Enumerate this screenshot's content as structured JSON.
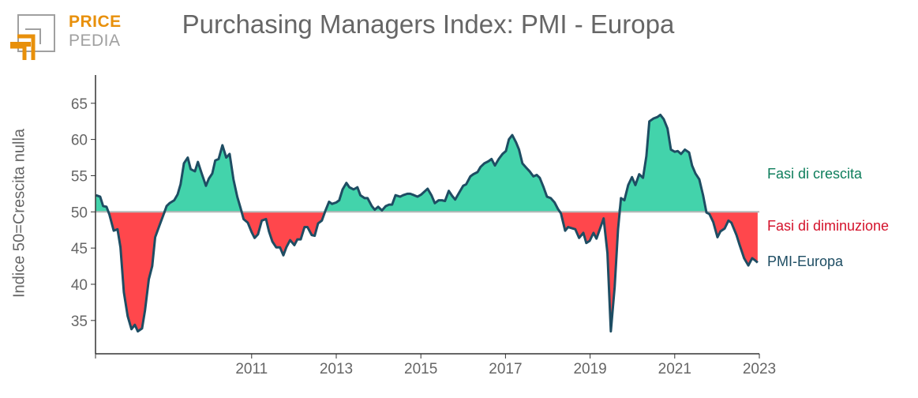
{
  "logo": {
    "line1": "PRICE",
    "line2": "PEDIA",
    "orange": "#e8900b",
    "grey": "#a0a0a0"
  },
  "chart_data": {
    "type": "area",
    "title": "Purchasing Managers Index: PMI - Europa",
    "xlabel": "",
    "ylabel": "Indice 50=Crescita nulla",
    "xlim": [
      2007.31,
      2023
    ],
    "ylim": [
      30.4,
      68.9
    ],
    "baseline": 50,
    "x_ticks": [
      2011,
      2013,
      2015,
      2017,
      2019,
      2021,
      2023
    ],
    "x_tick_labels": [
      "2011",
      "2013",
      "2015",
      "2017",
      "2019",
      "2021",
      "2023"
    ],
    "y_ticks": [
      35,
      40,
      45,
      50,
      55,
      60,
      65
    ],
    "y_tick_labels": [
      "35",
      "40",
      "45",
      "50",
      "55",
      "60",
      "65"
    ],
    "grid": false,
    "legend": [
      {
        "label": "Fasi di crescita",
        "color": "#0e7e5c",
        "fill": "#43d3ab"
      },
      {
        "label": "Fasi di diminuzione",
        "color": "#d4122b",
        "fill": "#ff474c"
      },
      {
        "label": "PMI-Europa",
        "color": "#1e4d63"
      }
    ],
    "legend_position": "right",
    "series": [
      {
        "name": "PMI-Europa",
        "color": "#1e4d63",
        "x": [
          2007.32,
          2007.42,
          2007.49,
          2007.57,
          2007.64,
          2007.74,
          2007.83,
          2007.9,
          2007.98,
          2008.07,
          2008.16,
          2008.24,
          2008.31,
          2008.41,
          2008.48,
          2008.57,
          2008.65,
          2008.72,
          2008.82,
          2008.91,
          2008.99,
          2009.06,
          2009.17,
          2009.25,
          2009.32,
          2009.4,
          2009.49,
          2009.56,
          2009.66,
          2009.73,
          2009.82,
          2009.92,
          2009.99,
          2010.07,
          2010.14,
          2010.22,
          2010.31,
          2010.4,
          2010.48,
          2010.57,
          2010.66,
          2010.74,
          2010.81,
          2010.91,
          2011.0,
          2011.07,
          2011.15,
          2011.24,
          2011.34,
          2011.41,
          2011.49,
          2011.58,
          2011.67,
          2011.75,
          2011.82,
          2011.91,
          2012.01,
          2012.08,
          2012.16,
          2012.25,
          2012.32,
          2012.42,
          2012.49,
          2012.57,
          2012.66,
          2012.74,
          2012.83,
          2012.9,
          2013.0,
          2013.07,
          2013.15,
          2013.24,
          2013.31,
          2013.41,
          2013.5,
          2013.57,
          2013.67,
          2013.74,
          2013.84,
          2013.91,
          2013.99,
          2014.08,
          2014.17,
          2014.25,
          2014.32,
          2014.4,
          2014.51,
          2014.58,
          2014.68,
          2014.75,
          2014.84,
          2014.92,
          2015.01,
          2015.16,
          2015.25,
          2015.33,
          2015.42,
          2015.5,
          2015.57,
          2015.66,
          2015.74,
          2015.81,
          2015.91,
          2016.0,
          2016.07,
          2016.17,
          2016.24,
          2016.34,
          2016.41,
          2016.5,
          2016.6,
          2016.67,
          2016.75,
          2016.84,
          2016.93,
          2017.01,
          2017.08,
          2017.16,
          2017.25,
          2017.32,
          2017.4,
          2017.49,
          2017.57,
          2017.66,
          2017.74,
          2017.81,
          2017.9,
          2017.98,
          2018.07,
          2018.16,
          2018.24,
          2018.31,
          2018.41,
          2018.48,
          2018.65,
          2018.74,
          2018.84,
          2018.91,
          2018.99,
          2019.08,
          2019.15,
          2019.32,
          2019.41,
          2019.49,
          2019.58,
          2019.66,
          2019.73,
          2019.81,
          2019.9,
          2019.99,
          2020.07,
          2020.16,
          2020.25,
          2020.33,
          2020.4,
          2020.5,
          2020.59,
          2020.66,
          2020.74,
          2020.83,
          2020.91,
          2021.0,
          2021.07,
          2021.15,
          2021.24,
          2021.34,
          2021.41,
          2021.49,
          2021.58,
          2021.67,
          2021.75,
          2021.82,
          2021.91,
          2022.01,
          2022.08,
          2022.18,
          2022.27,
          2022.34,
          2022.46,
          2022.53,
          2022.64,
          2022.74,
          2022.83,
          2022.9,
          2022.96
        ],
        "values": [
          52.3,
          52.1,
          50.8,
          50.7,
          49.6,
          47.4,
          47.6,
          45.1,
          38.9,
          35.6,
          33.8,
          34.4,
          33.5,
          33.9,
          36.4,
          40.7,
          42.5,
          46.5,
          48.1,
          49.5,
          50.8,
          51.2,
          51.6,
          52.4,
          53.8,
          56.7,
          57.5,
          55.9,
          55.6,
          56.9,
          55.3,
          53.6,
          54.6,
          55.3,
          57.1,
          57.3,
          59.2,
          57.5,
          58.0,
          54.5,
          52.1,
          50.5,
          49.0,
          48.5,
          47.2,
          46.4,
          46.9,
          48.8,
          49.0,
          47.3,
          45.9,
          45.1,
          45.1,
          44.0,
          45.1,
          46.1,
          45.4,
          46.2,
          46.2,
          47.9,
          47.9,
          46.8,
          46.7,
          48.4,
          48.8,
          50.1,
          51.4,
          51.1,
          51.3,
          51.6,
          53.1,
          54.0,
          53.4,
          53.1,
          53.4,
          52.3,
          51.9,
          51.9,
          50.8,
          50.3,
          50.7,
          50.2,
          50.8,
          51.0,
          51.0,
          52.3,
          52.1,
          52.3,
          52.5,
          52.5,
          52.3,
          52.1,
          52.4,
          53.2,
          52.3,
          51.2,
          51.6,
          51.6,
          51.5,
          52.9,
          52.2,
          51.7,
          52.7,
          53.6,
          53.8,
          54.9,
          55.2,
          55.5,
          56.2,
          56.7,
          57.0,
          57.3,
          56.4,
          57.3,
          58.0,
          58.4,
          60.0,
          60.6,
          59.6,
          58.6,
          56.7,
          56.1,
          55.6,
          54.9,
          55.1,
          54.7,
          53.4,
          52.1,
          51.9,
          51.3,
          50.4,
          49.8,
          47.4,
          47.9,
          47.6,
          46.4,
          47.1,
          45.7,
          46.0,
          47.1,
          46.3,
          49.1,
          44.3,
          33.5,
          39.6,
          47.6,
          51.9,
          51.6,
          53.7,
          54.8,
          53.7,
          55.2,
          54.7,
          57.7,
          62.5,
          62.9,
          63.1,
          63.4,
          62.8,
          61.5,
          58.6,
          58.3,
          58.4,
          58.0,
          58.6,
          58.2,
          56.4,
          55.3,
          54.5,
          52.3,
          49.9,
          49.7,
          48.6,
          46.5,
          47.3,
          47.7,
          48.8,
          48.5,
          46.8,
          45.5,
          43.6,
          42.6,
          43.6,
          43.3,
          43.0
        ]
      }
    ]
  }
}
